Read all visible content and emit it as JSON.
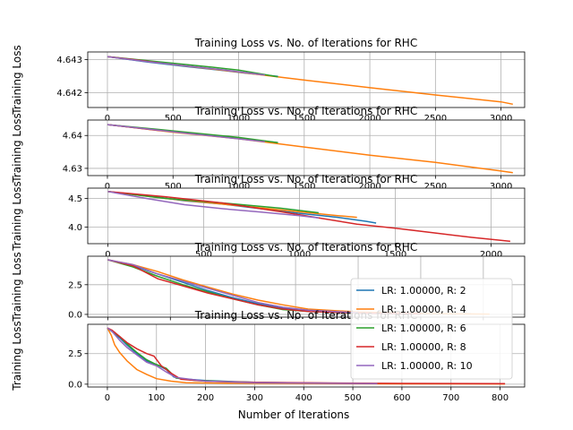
{
  "figure": {
    "xlabel": "Number of Iterations"
  },
  "series_styles": [
    {
      "name": "LR: 1.00000, R: 2",
      "color": "#1f77b4"
    },
    {
      "name": "LR: 1.00000, R: 4",
      "color": "#ff7f0e"
    },
    {
      "name": "LR: 1.00000, R: 6",
      "color": "#2ca02c"
    },
    {
      "name": "LR: 1.00000, R: 8",
      "color": "#d62728"
    },
    {
      "name": "LR: 1.00000, R: 10",
      "color": "#9467bd"
    }
  ],
  "chart_data": [
    {
      "type": "line",
      "title": "Training Loss vs. No. of Iterations for RHC",
      "ylabel": "Training Loss",
      "xlim": [
        -150,
        3180
      ],
      "ylim": [
        4.64155,
        4.64323
      ],
      "xticks": [
        0,
        500,
        1000,
        1500,
        2000,
        2500,
        3000
      ],
      "yticks": [
        4.642,
        4.643
      ],
      "ytick_labels": [
        "4.642",
        "4.643"
      ],
      "series": [
        {
          "points": [
            [
              0,
              4.64309
            ],
            [
              300,
              4.64293
            ],
            [
              600,
              4.64279
            ],
            [
              900,
              4.64266
            ],
            [
              1050,
              4.64259
            ],
            [
              1300,
              4.64249
            ]
          ]
        },
        {
          "points": [
            [
              0,
              4.64309
            ],
            [
              500,
              4.64285
            ],
            [
              1000,
              4.64262
            ],
            [
              1500,
              4.64238
            ],
            [
              2000,
              4.64215
            ],
            [
              2500,
              4.64193
            ],
            [
              3000,
              4.64172
            ],
            [
              3090,
              4.64165
            ]
          ]
        },
        {
          "points": [
            [
              0,
              4.64309
            ],
            [
              400,
              4.64293
            ],
            [
              800,
              4.64277
            ],
            [
              1000,
              4.64268
            ],
            [
              1300,
              4.64248
            ]
          ]
        },
        {
          "points": [
            [
              0,
              4.64309
            ],
            [
              200,
              4.643
            ],
            [
              400,
              4.6429
            ]
          ]
        },
        {
          "points": [
            [
              0,
              4.64309
            ],
            [
              300,
              4.64294
            ],
            [
              600,
              4.64281
            ],
            [
              900,
              4.64268
            ],
            [
              1200,
              4.64253
            ]
          ]
        }
      ]
    },
    {
      "type": "line",
      "title": "Training Loss vs. No. of Iterations for RHC",
      "ylabel": "Training Loss",
      "xlim": [
        -150,
        3180
      ],
      "ylim": [
        4.6278,
        4.6447
      ],
      "xticks": [
        0,
        500,
        1000,
        1500,
        2000,
        2500,
        3000
      ],
      "yticks": [
        4.63,
        4.64
      ],
      "ytick_labels": [
        "4.63",
        "4.64"
      ],
      "series": [
        {
          "points": [
            [
              0,
              4.6433
            ],
            [
              300,
              4.642
            ],
            [
              600,
              4.6408
            ],
            [
              900,
              4.6395
            ],
            [
              1100,
              4.6387
            ],
            [
              1300,
              4.6378
            ]
          ]
        },
        {
          "points": [
            [
              0,
              4.6433
            ],
            [
              500,
              4.641
            ],
            [
              1000,
              4.639
            ],
            [
              1500,
              4.6365
            ],
            [
              2000,
              4.634
            ],
            [
              2500,
              4.6318
            ],
            [
              3000,
              4.6292
            ],
            [
              3090,
              4.6287
            ]
          ]
        },
        {
          "points": [
            [
              0,
              4.6433
            ],
            [
              400,
              4.6418
            ],
            [
              800,
              4.6402
            ],
            [
              1000,
              4.6394
            ],
            [
              1300,
              4.6378
            ]
          ]
        },
        {
          "points": [
            [
              0,
              4.6433
            ],
            [
              200,
              4.6424
            ],
            [
              400,
              4.6415
            ]
          ]
        },
        {
          "points": [
            [
              0,
              4.6433
            ],
            [
              300,
              4.642
            ],
            [
              600,
              4.6407
            ],
            [
              900,
              4.6394
            ],
            [
              1200,
              4.6381
            ]
          ]
        }
      ]
    },
    {
      "type": "line",
      "title": "Training Loss vs. No. of Iterations for RHC",
      "ylabel": "Training Loss",
      "xlim": [
        -105,
        2175
      ],
      "ylim": [
        3.71,
        4.68
      ],
      "xticks": [
        0,
        500,
        1000,
        1500,
        2000
      ],
      "yticks": [
        4.0,
        4.5
      ],
      "ytick_labels": [
        "4.0",
        "4.5"
      ],
      "series": [
        {
          "points": [
            [
              0,
              4.62
            ],
            [
              200,
              4.55
            ],
            [
              400,
              4.46
            ],
            [
              600,
              4.4
            ],
            [
              800,
              4.32
            ],
            [
              1000,
              4.24
            ],
            [
              1200,
              4.17
            ],
            [
              1350,
              4.1
            ],
            [
              1400,
              4.07
            ]
          ]
        },
        {
          "points": [
            [
              0,
              4.62
            ],
            [
              300,
              4.5
            ],
            [
              600,
              4.4
            ],
            [
              900,
              4.3
            ],
            [
              1200,
              4.2
            ],
            [
              1300,
              4.17
            ]
          ]
        },
        {
          "points": [
            [
              0,
              4.62
            ],
            [
              300,
              4.5
            ],
            [
              600,
              4.42
            ],
            [
              900,
              4.33
            ],
            [
              1100,
              4.25
            ]
          ]
        },
        {
          "points": [
            [
              0,
              4.62
            ],
            [
              300,
              4.53
            ],
            [
              600,
              4.42
            ],
            [
              900,
              4.27
            ],
            [
              1100,
              4.16
            ],
            [
              1300,
              4.05
            ],
            [
              1500,
              3.98
            ],
            [
              1700,
              3.9
            ],
            [
              1900,
              3.82
            ],
            [
              2050,
              3.77
            ],
            [
              2100,
              3.75
            ]
          ]
        },
        {
          "points": [
            [
              0,
              4.62
            ],
            [
              200,
              4.5
            ],
            [
              400,
              4.39
            ],
            [
              600,
              4.32
            ],
            [
              800,
              4.26
            ],
            [
              1000,
              4.2
            ],
            [
              1100,
              4.16
            ]
          ]
        }
      ]
    },
    {
      "type": "line",
      "title": "Training Loss vs. No. of Iterations for RHC",
      "ylabel": "Training Loss",
      "xlim": [
        -160,
        3330
      ],
      "ylim": [
        -0.23,
        4.9
      ],
      "xticks": [
        0,
        500,
        1000,
        1500,
        2000,
        2500,
        3000
      ],
      "yticks": [
        0.0,
        2.5
      ],
      "ytick_labels": [
        "0.0",
        "2.5"
      ],
      "legend": "right",
      "series": [
        {
          "points": [
            [
              0,
              4.6
            ],
            [
              200,
              4.1
            ],
            [
              400,
              3.4
            ],
            [
              600,
              2.7
            ],
            [
              800,
              2.0
            ],
            [
              1000,
              1.4
            ],
            [
              1200,
              0.9
            ],
            [
              1400,
              0.5
            ],
            [
              1600,
              0.3
            ],
            [
              2000,
              0.15
            ],
            [
              2400,
              0.08
            ],
            [
              2900,
              0.05
            ]
          ]
        },
        {
          "points": [
            [
              0,
              4.6
            ],
            [
              200,
              4.2
            ],
            [
              400,
              3.6
            ],
            [
              600,
              2.9
            ],
            [
              800,
              2.3
            ],
            [
              1000,
              1.7
            ],
            [
              1200,
              1.2
            ],
            [
              1400,
              0.8
            ],
            [
              1600,
              0.45
            ],
            [
              2000,
              0.2
            ],
            [
              2500,
              0.08
            ],
            [
              3050,
              0.03
            ]
          ]
        },
        {
          "points": [
            [
              0,
              4.6
            ],
            [
              200,
              4.0
            ],
            [
              400,
              3.2
            ],
            [
              600,
              2.5
            ],
            [
              800,
              1.9
            ],
            [
              1000,
              1.3
            ],
            [
              1200,
              0.8
            ],
            [
              1400,
              0.4
            ],
            [
              1600,
              0.25
            ],
            [
              2000,
              0.12
            ]
          ]
        },
        {
          "points": [
            [
              0,
              4.6
            ],
            [
              200,
              4.1
            ],
            [
              400,
              3.0
            ],
            [
              600,
              2.4
            ],
            [
              800,
              1.8
            ],
            [
              1000,
              1.3
            ],
            [
              1200,
              0.8
            ],
            [
              1400,
              0.45
            ],
            [
              1600,
              0.25
            ],
            [
              2000,
              0.12
            ],
            [
              2500,
              0.06
            ]
          ]
        },
        {
          "points": [
            [
              0,
              4.6
            ],
            [
              200,
              4.2
            ],
            [
              400,
              3.4
            ],
            [
              600,
              2.8
            ],
            [
              800,
              2.2
            ],
            [
              1000,
              1.6
            ],
            [
              1200,
              1.0
            ],
            [
              1400,
              0.6
            ],
            [
              1600,
              0.35
            ],
            [
              2000,
              0.15
            ]
          ]
        }
      ]
    },
    {
      "type": "line",
      "title": "Training Loss vs. No. of Iterations for RHC",
      "ylabel": "Training Loss",
      "xlabel": "Number of Iterations",
      "xlim": [
        -40,
        850
      ],
      "ylim": [
        -0.23,
        4.9
      ],
      "xticks": [
        0,
        100,
        200,
        300,
        400,
        500,
        600,
        700,
        800
      ],
      "yticks": [
        0.0,
        2.5
      ],
      "ytick_labels": [
        "0.0",
        "2.5"
      ],
      "legend": "lower right",
      "series": [
        {
          "points": [
            [
              0,
              4.6
            ],
            [
              10,
              4.3
            ],
            [
              25,
              3.8
            ],
            [
              40,
              3.2
            ],
            [
              60,
              2.5
            ],
            [
              80,
              1.9
            ],
            [
              100,
              1.6
            ],
            [
              120,
              1.2
            ],
            [
              135,
              0.6
            ],
            [
              150,
              0.45
            ],
            [
              200,
              0.3
            ],
            [
              300,
              0.15
            ],
            [
              400,
              0.1
            ],
            [
              550,
              0.05
            ]
          ]
        },
        {
          "points": [
            [
              0,
              4.6
            ],
            [
              8,
              4.0
            ],
            [
              15,
              3.2
            ],
            [
              25,
              2.6
            ],
            [
              40,
              1.9
            ],
            [
              60,
              1.2
            ],
            [
              80,
              0.8
            ],
            [
              100,
              0.45
            ],
            [
              130,
              0.25
            ],
            [
              160,
              0.12
            ],
            [
              250,
              0.08
            ],
            [
              400,
              0.05
            ],
            [
              600,
              0.03
            ],
            [
              810,
              0.02
            ]
          ]
        },
        {
          "points": [
            [
              0,
              4.6
            ],
            [
              10,
              4.3
            ],
            [
              25,
              3.9
            ],
            [
              40,
              3.3
            ],
            [
              60,
              2.6
            ],
            [
              80,
              2.0
            ],
            [
              100,
              1.6
            ],
            [
              120,
              1.3
            ],
            [
              140,
              0.5
            ],
            [
              180,
              0.3
            ],
            [
              250,
              0.2
            ],
            [
              330,
              0.12
            ]
          ]
        },
        {
          "points": [
            [
              0,
              4.6
            ],
            [
              10,
              4.4
            ],
            [
              25,
              3.9
            ],
            [
              40,
              3.4
            ],
            [
              60,
              2.9
            ],
            [
              80,
              2.5
            ],
            [
              95,
              2.3
            ],
            [
              110,
              1.5
            ],
            [
              130,
              0.9
            ],
            [
              150,
              0.4
            ],
            [
              200,
              0.25
            ],
            [
              300,
              0.15
            ],
            [
              450,
              0.1
            ],
            [
              600,
              0.06
            ],
            [
              810,
              0.04
            ]
          ]
        },
        {
          "points": [
            [
              0,
              4.6
            ],
            [
              10,
              4.3
            ],
            [
              25,
              3.6
            ],
            [
              40,
              3.0
            ],
            [
              60,
              2.4
            ],
            [
              80,
              1.8
            ],
            [
              100,
              1.5
            ],
            [
              120,
              1.0
            ],
            [
              140,
              0.55
            ],
            [
              200,
              0.25
            ],
            [
              300,
              0.12
            ],
            [
              420,
              0.08
            ],
            [
              550,
              0.05
            ]
          ]
        }
      ]
    }
  ]
}
